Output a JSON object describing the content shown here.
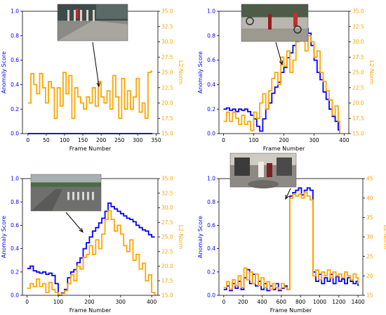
{
  "chart_data": [
    {
      "type": "line",
      "xlabel": "Frame Number",
      "ylabel": "Anomaly Score",
      "ylabel2": "L2-Norm",
      "xlim": [
        -15,
        355
      ],
      "ylim": [
        0,
        1.0
      ],
      "ylim2": [
        15,
        35
      ],
      "xticks": [
        0,
        50,
        100,
        150,
        200,
        250,
        300,
        350
      ],
      "yticks": [
        0.0,
        0.2,
        0.4,
        0.6,
        0.8,
        1.0
      ],
      "yticks2": [
        15.0,
        17.5,
        20.0,
        22.5,
        25.0,
        27.5,
        30.0,
        32.5,
        35.0
      ],
      "inset": "thumbnail-pedestrian-walkway",
      "series": [
        {
          "axis": "left",
          "color": "#0000ff",
          "x": [
            0,
            340
          ],
          "y": [
            0.0,
            0.0
          ]
        },
        {
          "axis": "right",
          "color": "#ffa500",
          "x": [
            0,
            8,
            16,
            24,
            32,
            40,
            48,
            56,
            64,
            72,
            80,
            88,
            96,
            104,
            112,
            120,
            128,
            136,
            144,
            152,
            160,
            168,
            176,
            184,
            192,
            200,
            208,
            216,
            224,
            232,
            240,
            248,
            256,
            264,
            272,
            280,
            288,
            296,
            304,
            312,
            320,
            328,
            336,
            340
          ],
          "y": [
            20.0,
            24.8,
            23.0,
            21.5,
            24.8,
            22.5,
            20.0,
            23.5,
            22.5,
            17.5,
            22.5,
            19.5,
            25.0,
            21.5,
            24.5,
            17.5,
            22.5,
            21.0,
            20.0,
            19.0,
            21.0,
            20.0,
            22.5,
            19.5,
            23.5,
            21.0,
            20.0,
            22.0,
            19.0,
            24.5,
            21.0,
            17.5,
            24.0,
            19.0,
            22.0,
            19.0,
            21.0,
            24.0,
            18.5,
            20.0,
            17.5,
            25.0,
            25.2,
            25.2
          ]
        }
      ]
    },
    {
      "type": "line",
      "xlabel": "Frame Number",
      "ylabel": "Anomaly Score",
      "ylabel2": "L2-Norm",
      "xlim": [
        -15,
        415
      ],
      "ylim": [
        0,
        1.0
      ],
      "ylim2": [
        15,
        35
      ],
      "xticks": [
        0,
        100,
        200,
        300,
        400
      ],
      "yticks": [
        0.0,
        0.2,
        0.4,
        0.6,
        0.8,
        1.0
      ],
      "yticks2": [
        15.0,
        17.5,
        20.0,
        22.5,
        25.0,
        27.5,
        30.0,
        32.5,
        35.0
      ],
      "inset": "thumbnail-skater-and-cyclists",
      "series": [
        {
          "axis": "left",
          "color": "#0000ff",
          "x": [
            0,
            10,
            20,
            30,
            40,
            50,
            60,
            70,
            80,
            90,
            100,
            110,
            120,
            130,
            140,
            150,
            160,
            170,
            180,
            190,
            200,
            210,
            220,
            230,
            240,
            250,
            260,
            270,
            280,
            290,
            300,
            310,
            320,
            330,
            340,
            350,
            360,
            370,
            380,
            385
          ],
          "y": [
            0.2,
            0.21,
            0.19,
            0.2,
            0.18,
            0.2,
            0.19,
            0.2,
            0.18,
            0.15,
            0.12,
            0.06,
            0.02,
            0.12,
            0.2,
            0.25,
            0.33,
            0.38,
            0.42,
            0.5,
            0.54,
            0.62,
            0.66,
            0.72,
            0.76,
            0.8,
            0.85,
            0.86,
            0.82,
            0.72,
            0.6,
            0.5,
            0.44,
            0.34,
            0.28,
            0.2,
            0.14,
            0.1,
            0.03,
            0.0
          ]
        },
        {
          "axis": "right",
          "color": "#ffa500",
          "x": [
            0,
            10,
            20,
            30,
            40,
            50,
            60,
            70,
            80,
            90,
            100,
            110,
            120,
            130,
            140,
            150,
            160,
            170,
            180,
            190,
            200,
            210,
            220,
            230,
            240,
            250,
            260,
            270,
            280,
            290,
            300,
            310,
            320,
            330,
            340,
            350,
            360,
            370,
            380,
            385
          ],
          "y": [
            17.0,
            18.5,
            17.0,
            18.5,
            17.5,
            16.5,
            18.0,
            16.5,
            17.0,
            15.5,
            18.5,
            17.5,
            20.0,
            21.5,
            19.0,
            22.0,
            24.0,
            25.0,
            23.0,
            27.5,
            26.0,
            28.5,
            25.0,
            27.0,
            30.0,
            31.0,
            34.0,
            28.5,
            31.0,
            30.0,
            27.5,
            28.5,
            25.0,
            23.5,
            22.0,
            20.5,
            18.0,
            19.5,
            17.0,
            15.0
          ]
        }
      ]
    },
    {
      "type": "line",
      "xlabel": "Frame Number",
      "ylabel": "Anomaly Score",
      "ylabel2": "L2-Norm",
      "xlim": [
        -15,
        420
      ],
      "ylim": [
        0,
        1.0
      ],
      "ylim2": [
        15,
        35
      ],
      "xticks": [
        0,
        100,
        200,
        300,
        400
      ],
      "yticks": [
        0.0,
        0.2,
        0.4,
        0.6,
        0.8,
        1.0
      ],
      "yticks2": [
        15.0,
        17.5,
        20.0,
        22.5,
        25.0,
        27.5,
        30.0,
        32.5,
        35.0
      ],
      "inset": "thumbnail-street-crossing",
      "series": [
        {
          "axis": "left",
          "color": "#0000ff",
          "x": [
            0,
            10,
            20,
            30,
            40,
            50,
            60,
            70,
            80,
            90,
            100,
            110,
            120,
            130,
            140,
            150,
            160,
            170,
            180,
            190,
            200,
            210,
            220,
            230,
            240,
            250,
            260,
            270,
            280,
            290,
            300,
            310,
            320,
            330,
            340,
            350,
            360,
            370,
            380,
            390,
            400,
            410
          ],
          "y": [
            0.23,
            0.25,
            0.21,
            0.2,
            0.19,
            0.2,
            0.18,
            0.19,
            0.17,
            0.1,
            0.0,
            0.02,
            0.05,
            0.15,
            0.2,
            0.22,
            0.28,
            0.32,
            0.4,
            0.45,
            0.5,
            0.55,
            0.58,
            0.62,
            0.66,
            0.72,
            0.79,
            0.76,
            0.74,
            0.72,
            0.7,
            0.68,
            0.66,
            0.65,
            0.63,
            0.6,
            0.58,
            0.56,
            0.55,
            0.52,
            0.5,
            0.5
          ]
        },
        {
          "axis": "right",
          "color": "#ffa500",
          "x": [
            0,
            10,
            20,
            30,
            40,
            50,
            60,
            70,
            80,
            90,
            100,
            110,
            120,
            130,
            140,
            150,
            160,
            170,
            180,
            190,
            200,
            210,
            220,
            230,
            240,
            250,
            260,
            270,
            280,
            290,
            300,
            310,
            320,
            330,
            340,
            350,
            360,
            370,
            380,
            390,
            400,
            410
          ],
          "y": [
            16.2,
            17.0,
            16.5,
            17.8,
            16.5,
            17.0,
            15.5,
            17.2,
            16.0,
            15.5,
            15.0,
            15.3,
            15.8,
            17.0,
            18.5,
            17.5,
            20.0,
            19.5,
            21.5,
            22.0,
            23.5,
            22.0,
            24.5,
            23.0,
            25.5,
            28.0,
            29.5,
            28.0,
            26.0,
            27.0,
            25.5,
            23.5,
            22.5,
            24.5,
            21.0,
            22.0,
            19.5,
            20.5,
            17.5,
            18.5,
            15.5,
            15.0
          ]
        }
      ]
    },
    {
      "type": "line",
      "xlabel": "Frame Number",
      "ylabel": "Anomaly Score",
      "ylabel2": "L2-Norm",
      "xlim": [
        -50,
        1450
      ],
      "ylim": [
        0,
        1.0
      ],
      "ylim2": [
        15,
        45
      ],
      "xticks": [
        0,
        200,
        400,
        600,
        800,
        1000,
        1200,
        1400
      ],
      "yticks": [
        0.0,
        0.2,
        0.4,
        0.6,
        0.8,
        1.0
      ],
      "yticks2": [
        15,
        20,
        25,
        30,
        35,
        40,
        45
      ],
      "inset": "thumbnail-indoor-fight",
      "series": [
        {
          "axis": "left",
          "color": "#0000ff",
          "x": [
            0,
            30,
            60,
            90,
            120,
            150,
            180,
            210,
            240,
            270,
            300,
            330,
            360,
            390,
            420,
            450,
            480,
            510,
            540,
            570,
            600,
            630,
            660,
            690,
            720,
            750,
            780,
            810,
            840,
            870,
            900,
            930,
            960,
            990,
            1020,
            1050,
            1080,
            1110,
            1140,
            1170,
            1200,
            1230,
            1260,
            1290,
            1320,
            1350,
            1380,
            1400
          ],
          "y": [
            0.05,
            0.08,
            0.04,
            0.1,
            0.06,
            0.12,
            0.05,
            0.15,
            0.22,
            0.1,
            0.18,
            0.08,
            0.12,
            0.05,
            0.1,
            0.04,
            0.08,
            0.05,
            0.1,
            0.04,
            0.06,
            0.08,
            0.05,
            0.85,
            0.88,
            0.9,
            0.92,
            0.86,
            0.9,
            0.92,
            0.9,
            0.2,
            0.12,
            0.18,
            0.1,
            0.15,
            0.12,
            0.18,
            0.1,
            0.16,
            0.12,
            0.14,
            0.1,
            0.15,
            0.12,
            0.1,
            0.12,
            0.08
          ]
        },
        {
          "axis": "right",
          "color": "#ffa500",
          "x": [
            0,
            30,
            60,
            90,
            120,
            150,
            180,
            210,
            240,
            270,
            300,
            330,
            360,
            390,
            420,
            450,
            480,
            510,
            540,
            570,
            600,
            630,
            660,
            690,
            720,
            750,
            780,
            810,
            840,
            870,
            900,
            930,
            960,
            990,
            1020,
            1050,
            1080,
            1110,
            1140,
            1170,
            1200,
            1230,
            1260,
            1290,
            1320,
            1350,
            1380,
            1400
          ],
          "y": [
            17.0,
            18.5,
            16.5,
            19.0,
            17.5,
            20.0,
            17.0,
            22.0,
            19.0,
            21.0,
            18.0,
            20.5,
            17.5,
            19.5,
            17.0,
            18.5,
            16.5,
            18.0,
            17.0,
            16.5,
            18.0,
            17.0,
            16.5,
            40.0,
            41.0,
            40.5,
            41.0,
            40.0,
            41.5,
            40.5,
            39.5,
            20.0,
            21.5,
            19.0,
            21.0,
            20.0,
            21.5,
            19.5,
            21.0,
            20.0,
            20.5,
            19.5,
            21.0,
            20.0,
            19.0,
            20.5,
            19.5,
            18.0
          ]
        }
      ]
    }
  ]
}
